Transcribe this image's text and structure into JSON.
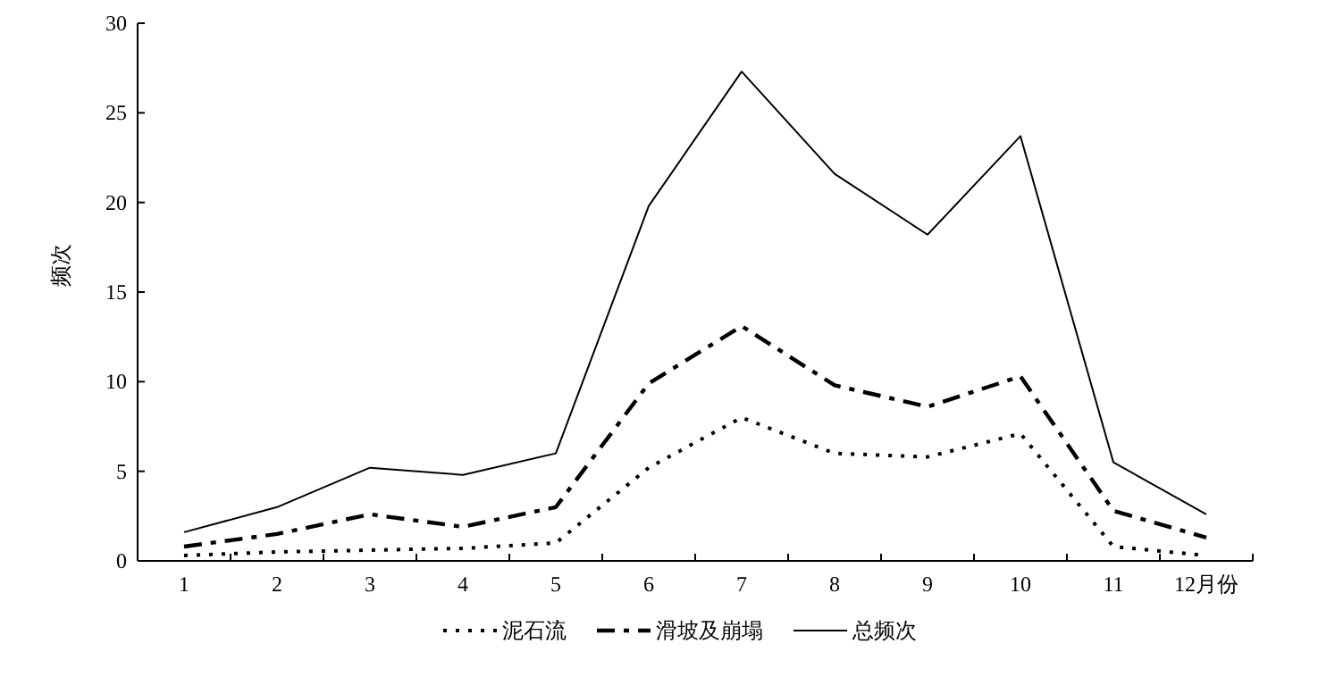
{
  "chart_data": {
    "type": "line",
    "ylabel": "频次",
    "categories": [
      "1",
      "2",
      "3",
      "4",
      "5",
      "6",
      "7",
      "8",
      "9",
      "10",
      "11",
      "12月份"
    ],
    "ylim": [
      0,
      30
    ],
    "yticks": [
      0,
      5,
      10,
      15,
      20,
      25,
      30
    ],
    "grid": false,
    "legend": "bottom",
    "marker": "none",
    "series": [
      {
        "name": "泥石流",
        "color": "#000000",
        "line_style": "dotted",
        "values": [
          0.3,
          0.5,
          0.6,
          0.7,
          1.0,
          5.2,
          8.0,
          6.0,
          5.8,
          7.1,
          0.8,
          0.3
        ]
      },
      {
        "name": "滑坡及崩塌",
        "color": "#000000",
        "line_style": "dashdot",
        "values": [
          0.8,
          1.5,
          2.6,
          1.9,
          3.0,
          9.9,
          13.1,
          9.8,
          8.6,
          10.3,
          2.8,
          1.3
        ]
      },
      {
        "name": "总频次",
        "color": "#000000",
        "line_style": "solid",
        "values": [
          1.6,
          3.0,
          5.2,
          4.8,
          6.0,
          19.8,
          27.3,
          21.6,
          18.2,
          23.7,
          5.5,
          2.6
        ]
      }
    ]
  }
}
